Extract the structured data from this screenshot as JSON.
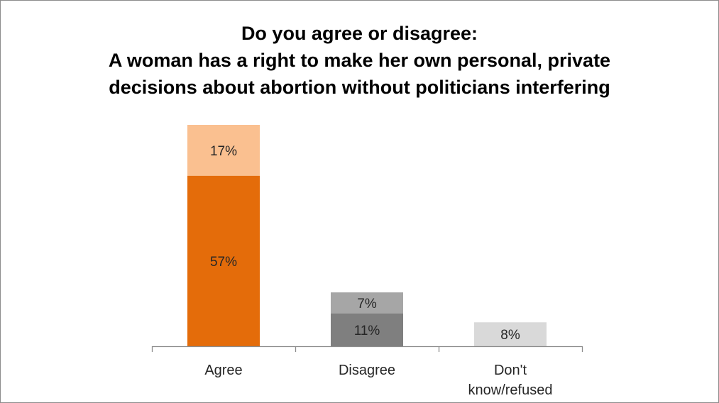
{
  "chart_data": {
    "type": "bar",
    "stacked": true,
    "title_lines": [
      "Do you agree or disagree:",
      "A woman has a right to make her own personal, private",
      "decisions about abortion without politicians interfering"
    ],
    "categories": [
      "Agree",
      "Disagree",
      "Don't know/refused"
    ],
    "category_label_lines": [
      [
        "Agree"
      ],
      [
        "Disagree"
      ],
      [
        "Don't",
        "know/refused"
      ]
    ],
    "segments": [
      [
        {
          "value": 57,
          "label": "57%",
          "color": "#e46c0a"
        },
        {
          "value": 17,
          "label": "17%",
          "color": "#fac090"
        }
      ],
      [
        {
          "value": 11,
          "label": "11%",
          "color": "#7f7f7f"
        },
        {
          "value": 7,
          "label": "7%",
          "color": "#a6a6a6"
        }
      ],
      [
        {
          "value": 8,
          "label": "8%",
          "color": "#d9d9d9"
        }
      ]
    ],
    "ylim": [
      0,
      74
    ],
    "grid": false,
    "legend": "none",
    "xlabel": "",
    "ylabel": "",
    "axis_color": "#8c8c8c",
    "label_color": "#262626"
  }
}
